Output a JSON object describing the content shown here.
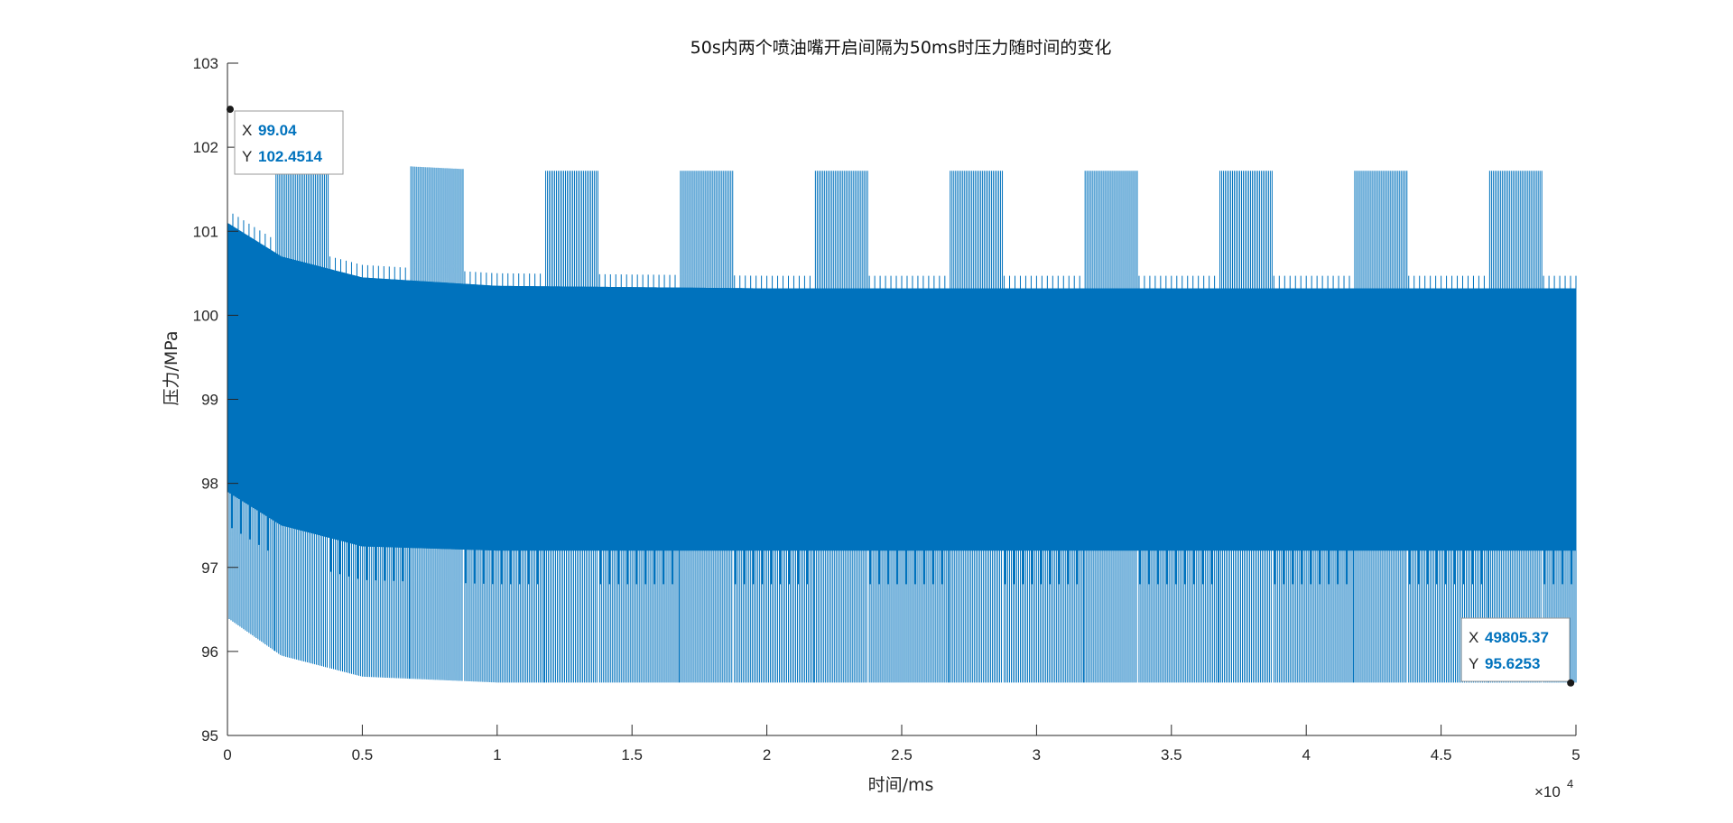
{
  "colors": {
    "series": "#0072BD",
    "axis": "#262626",
    "datatip_value": "#0072BD",
    "background": "#ffffff"
  },
  "chart_data": {
    "type": "line",
    "title": "50s内两个喷油嘴开启间隔为50ms时压力随时间的变化",
    "xlabel": "时间/ms",
    "ylabel": "压力/MPa",
    "x_exponent_label": "×10",
    "x_exponent_power": "4",
    "xlim": [
      0,
      50000
    ],
    "ylim": [
      95,
      103
    ],
    "x_ticks": [
      0,
      5000,
      10000,
      15000,
      20000,
      25000,
      30000,
      35000,
      40000,
      45000,
      50000
    ],
    "x_tick_labels": [
      "0",
      "0.5",
      "1",
      "1.5",
      "2",
      "2.5",
      "3",
      "3.5",
      "4",
      "4.5",
      "5"
    ],
    "y_ticks": [
      95,
      96,
      97,
      98,
      99,
      100,
      101,
      102,
      103
    ],
    "y_tick_labels": [
      "95",
      "96",
      "97",
      "98",
      "99",
      "100",
      "101",
      "102",
      "103"
    ],
    "grid": false,
    "legend": "none",
    "envelope": {
      "description_points_x": [
        0,
        2000,
        5000,
        10000,
        20000,
        50000
      ],
      "outer_max": [
        102.45,
        101.9,
        101.8,
        101.72,
        101.72,
        101.72
      ],
      "mid_high": [
        101.1,
        100.7,
        100.45,
        100.35,
        100.32,
        100.32
      ],
      "mid_low": [
        97.9,
        97.5,
        97.25,
        97.2,
        97.2,
        97.2
      ],
      "outer_min": [
        96.4,
        95.95,
        95.7,
        95.63,
        95.63,
        95.63
      ],
      "burst_period_ms": 5000
    },
    "datatips": [
      {
        "x_label": "X",
        "x_value": "99.04",
        "y_label": "Y",
        "y_value": "102.4514",
        "x": 99.04,
        "y": 102.4514
      },
      {
        "x_label": "X",
        "x_value": "49805.37",
        "y_label": "Y",
        "y_value": "95.6253",
        "x": 49805.37,
        "y": 95.6253
      }
    ]
  }
}
